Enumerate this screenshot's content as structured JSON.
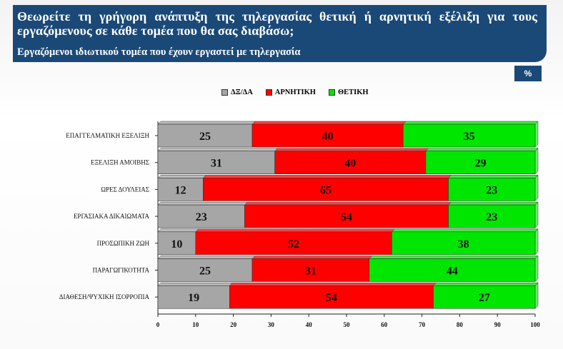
{
  "header": {
    "title": "Θεωρείτε τη γρήγορη ανάπτυξη της τηλεργασίας θετική ή αρνητική εξέλιξη για τους εργαζόμενους σε κάθε τομέα που θα σας διαβάσω;",
    "subtitle": "Εργαζόμενοι ιδιωτικού τομέα που έχουν εργαστεί με τηλεργασία"
  },
  "unit_label": "%",
  "colors": {
    "header_bg": "#1a4977",
    "grey": "#a6a6a6",
    "red": "#ff0000",
    "green": "#00e600"
  },
  "chart_data": {
    "type": "bar",
    "orientation": "horizontal",
    "stacked": true,
    "categories": [
      "ΕΠΑΓΓΕΛΜΑΤΙΚΗ ΕΞΕΛΙΞΗ",
      "ΕΞΕΛΙΞΗ ΑΜΟΙΒΗΣ",
      "ΩΡΕΣ ΔΟΥΛΕΙΑΣ",
      "ΕΡΓΑΣΙΑΚΑ ΔΙΚΑΙΩΜΑΤΑ",
      "ΠΡΟΣΩΠΙΚΗ ΖΩΗ",
      "ΠΑΡΑΓΩΓΙΚΟΤΗΤΑ",
      "ΔΙΑΘΕΣΗ/ΨΥΧΙΚΗ ΙΣΟΡΡΟΠΙΑ"
    ],
    "series": [
      {
        "name": "ΔΞ/ΔΑ",
        "color": "#a6a6a6",
        "values": [
          25,
          31,
          12,
          23,
          10,
          25,
          19
        ]
      },
      {
        "name": "ΑΡΝΗΤΙΚΗ",
        "color": "#ff0000",
        "values": [
          40,
          40,
          65,
          54,
          52,
          31,
          54
        ]
      },
      {
        "name": "ΘΕΤΙΚΗ",
        "color": "#00e600",
        "values": [
          35,
          29,
          23,
          23,
          38,
          44,
          27
        ]
      }
    ],
    "xlim": [
      0,
      100
    ],
    "xticks": [
      0,
      10,
      20,
      30,
      40,
      50,
      60,
      70,
      80,
      90,
      100
    ],
    "legend_position": "top",
    "grid": false
  }
}
